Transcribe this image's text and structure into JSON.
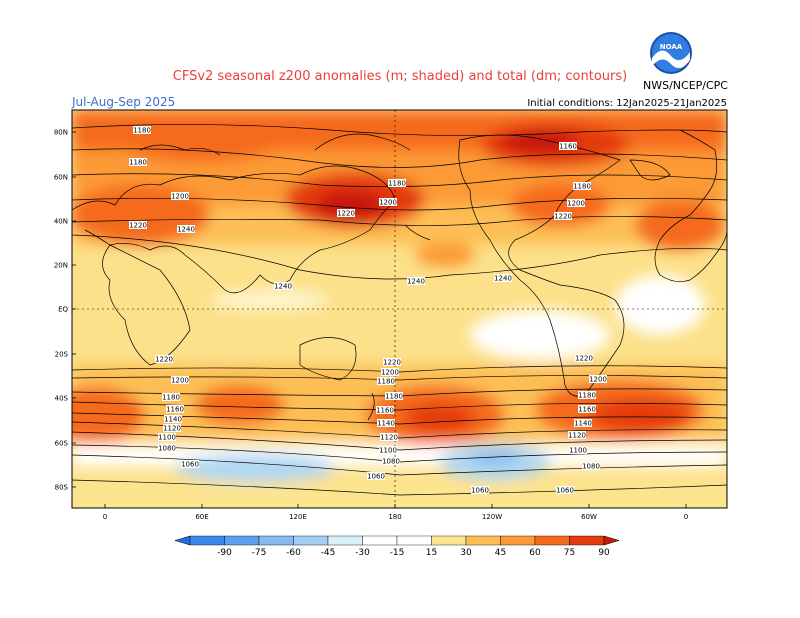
{
  "title": "CFSv2 seasonal z200 anomalies (m; shaded) and total (dm; contours)",
  "period": "Jul-Aug-Sep 2025",
  "initial_conditions": "Initial conditions: 12Jan2025-21Jan2025",
  "agency": "NWS/NCEP/CPC",
  "logo_text": "NOAA",
  "lat_ticks": [
    "80N",
    "60N",
    "40N",
    "20N",
    "EQ",
    "20S",
    "40S",
    "60S",
    "80S"
  ],
  "lon_ticks": [
    "0",
    "60E",
    "120E",
    "180",
    "120W",
    "60W",
    "0"
  ],
  "contour_labels": [
    "1180",
    "1180",
    "1200",
    "1220",
    "1240",
    "1240",
    "1180",
    "1200",
    "1220",
    "1180",
    "1180",
    "1200",
    "1220",
    "1240",
    "1240",
    "1220",
    "1200",
    "1180",
    "1160",
    "1140",
    "1120",
    "1100",
    "1080",
    "1060",
    "1220",
    "1200",
    "1180",
    "1180",
    "1160",
    "1140",
    "1120",
    "1100",
    "1080",
    "1060",
    "1220",
    "1200",
    "1180",
    "1160",
    "1140",
    "1120",
    "1100",
    "1080",
    "1060",
    "1060",
    "1160"
  ],
  "colorbar": {
    "labels": [
      "-90",
      "-75",
      "-60",
      "-45",
      "-30",
      "-15",
      "15",
      "30",
      "45",
      "60",
      "75",
      "90"
    ],
    "colors": [
      "#1f6fe0",
      "#3a86ea",
      "#5c9ff0",
      "#86bbf2",
      "#b0d7f4",
      "#d8f0f8",
      "#ffffff",
      "#fde58f",
      "#fdbf55",
      "#fc9a35",
      "#f56a1c",
      "#e43a10",
      "#c8170d"
    ]
  }
}
